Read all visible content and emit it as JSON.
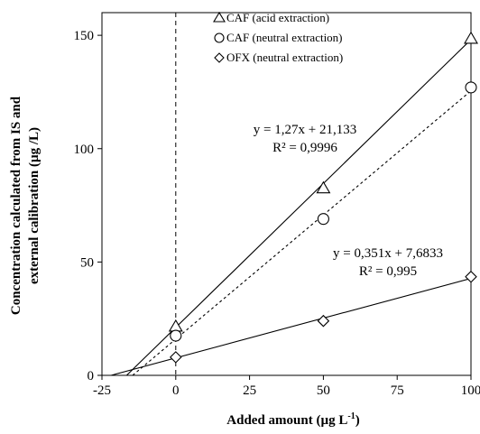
{
  "chart_data": {
    "type": "scatter",
    "xlabel": "Added amount (µg L",
    "xlabel_sup": "-1",
    "xlabel_end": ")",
    "ylabel_line1": "Concentration calculated from IS and",
    "ylabel_line2": "external calibration  (µg /L)",
    "xlim": [
      -25,
      100
    ],
    "ylim": [
      0,
      160
    ],
    "x_ticks": [
      -25,
      0,
      25,
      50,
      75,
      100
    ],
    "y_ticks": [
      0,
      50,
      100,
      150
    ],
    "legend_position": "top-center",
    "reference_line_x": 0,
    "series": [
      {
        "name": "CAF (acid extraction)",
        "marker": "triangle",
        "x": [
          0,
          50,
          100
        ],
        "y": [
          21.5,
          82.5,
          148.5
        ],
        "fit": {
          "slope": 1.27,
          "intercept": 21.133,
          "style": "solid"
        }
      },
      {
        "name": "CAF (neutral extraction)",
        "marker": "circle",
        "x": [
          0,
          50,
          100
        ],
        "y": [
          17.5,
          69,
          127
        ],
        "fit": {
          "slope": 1.095,
          "intercept": 16.0,
          "style": "dashed"
        }
      },
      {
        "name": "OFX (neutral extraction)",
        "marker": "diamond",
        "x": [
          0,
          50,
          100
        ],
        "y": [
          8,
          24,
          43.5
        ],
        "fit": {
          "slope": 0.351,
          "intercept": 7.6833,
          "style": "solid"
        }
      }
    ],
    "annotations": [
      {
        "eq": "y = 1,27x + 21,133",
        "r2": "R² = 0,9996",
        "series": 0
      },
      {
        "eq": "y = 0,351x + 7,6833",
        "r2": "R² = 0,995",
        "series": 2
      }
    ]
  }
}
